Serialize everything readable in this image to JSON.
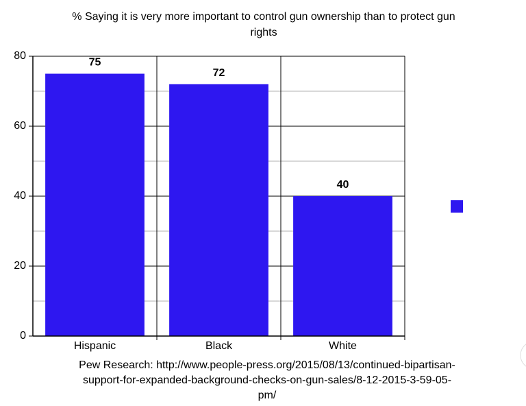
{
  "chart_data": {
    "type": "bar",
    "title": "% Saying it is very more important to control gun ownership than to protect gun rights",
    "categories": [
      "Hispanic",
      "Black",
      "White"
    ],
    "values": [
      75,
      72,
      40
    ],
    "color": "#2e17f0",
    "ylim": [
      0,
      80
    ],
    "yticks": [
      0,
      20,
      40,
      60,
      80
    ],
    "yticks_minor": [
      10,
      30,
      50,
      70
    ],
    "grid": true,
    "source": "Pew Research: http://www.people-press.org/2015/08/13/continued-bipartisan-support-for-expanded-background-checks-on-gun-sales/8-12-2015-3-59-05-pm/"
  }
}
